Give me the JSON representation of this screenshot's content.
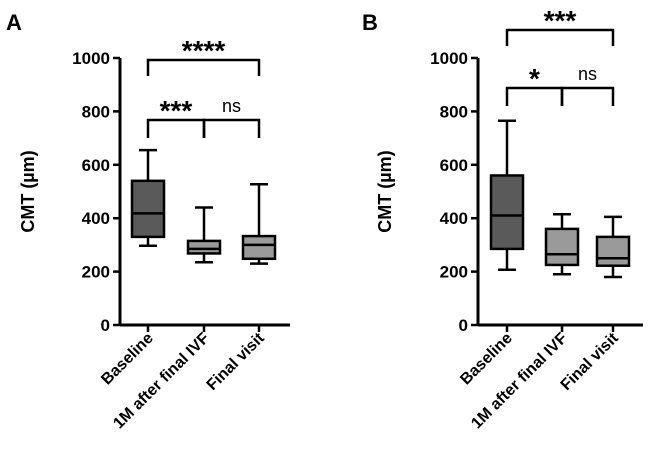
{
  "chart_data": [
    {
      "type": "boxplot",
      "panel_label": "A",
      "ylabel": "CMT (µm)",
      "xlabel": "",
      "ylim": [
        0,
        1000
      ],
      "yticks": [
        0,
        200,
        400,
        600,
        800,
        1000
      ],
      "categories": [
        "Baseline",
        "1M after final IVF",
        "Final visit"
      ],
      "boxes": [
        {
          "name": "Baseline",
          "min": 297,
          "q1": 330,
          "median": 418,
          "q3": 540,
          "max": 655,
          "fill": "#5a5a5a"
        },
        {
          "name": "1M after final IVF",
          "min": 235,
          "q1": 268,
          "median": 285,
          "q3": 315,
          "max": 440,
          "fill": "#9a9a9a"
        },
        {
          "name": "Final visit",
          "min": 230,
          "q1": 248,
          "median": 300,
          "q3": 333,
          "max": 527,
          "fill": "#9a9a9a"
        }
      ],
      "brackets": [
        {
          "from": 0,
          "to": 2,
          "label": "****"
        },
        {
          "from": 0,
          "to": 1,
          "label": "***"
        },
        {
          "from": 1,
          "to": 2,
          "label": "ns"
        }
      ]
    },
    {
      "type": "boxplot",
      "panel_label": "B",
      "ylabel": "CMT (µm)",
      "xlabel": "",
      "ylim": [
        0,
        1000
      ],
      "yticks": [
        0,
        200,
        400,
        600,
        800,
        1000
      ],
      "categories": [
        "Baseline",
        "1M after final IVF",
        "Final visit"
      ],
      "boxes": [
        {
          "name": "Baseline",
          "min": 207,
          "q1": 285,
          "median": 410,
          "q3": 560,
          "max": 765,
          "fill": "#5a5a5a"
        },
        {
          "name": "1M after final IVF",
          "min": 190,
          "q1": 225,
          "median": 265,
          "q3": 360,
          "max": 415,
          "fill": "#9a9a9a"
        },
        {
          "name": "Final visit",
          "min": 180,
          "q1": 222,
          "median": 250,
          "q3": 330,
          "max": 405,
          "fill": "#9a9a9a"
        }
      ],
      "brackets": [
        {
          "from": 0,
          "to": 2,
          "label": "***"
        },
        {
          "from": 0,
          "to": 1,
          "label": "*"
        },
        {
          "from": 1,
          "to": 2,
          "label": "ns"
        }
      ]
    }
  ]
}
